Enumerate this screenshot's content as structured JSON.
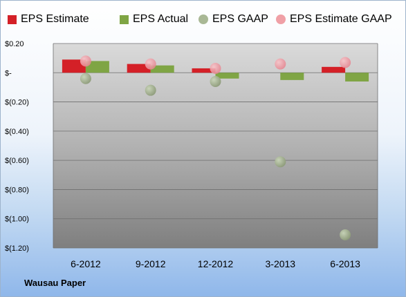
{
  "chart_data": {
    "type": "bar",
    "title": "",
    "categories": [
      "6-2012",
      "9-2012",
      "12-2012",
      "3-2013",
      "6-2013"
    ],
    "series": [
      {
        "name": "EPS Estimate",
        "kind": "bar",
        "color": "#d42027",
        "values": [
          0.09,
          0.06,
          0.03,
          null,
          0.04
        ]
      },
      {
        "name": "EPS Actual",
        "kind": "bar",
        "color": "#7fa544",
        "values": [
          0.08,
          0.05,
          -0.04,
          -0.05,
          -0.06
        ]
      },
      {
        "name": "EPS GAAP",
        "kind": "dot",
        "color": "#a9b895",
        "values": [
          -0.04,
          -0.12,
          -0.06,
          -0.61,
          -1.11
        ]
      },
      {
        "name": "EPS Estimate GAAP",
        "kind": "dot",
        "color": "#f0a0a6",
        "values": [
          0.08,
          0.06,
          0.03,
          0.06,
          0.07
        ]
      }
    ],
    "ylim": [
      -1.2,
      0.2
    ],
    "yticks": [
      0.2,
      0,
      -0.2,
      -0.4,
      -0.6,
      -0.8,
      -1.0,
      -1.2
    ],
    "ytick_labels": [
      "$0.20",
      "$-",
      "$(0.20)",
      "$(0.40)",
      "$(0.60)",
      "$(0.80)",
      "$(1.00)",
      "$(1.20)"
    ],
    "grid": true,
    "legend": "top"
  },
  "legend_labels": [
    "EPS Estimate",
    "EPS Actual",
    "EPS GAAP",
    "EPS Estimate GAAP"
  ],
  "company_label": "Wausau Paper"
}
